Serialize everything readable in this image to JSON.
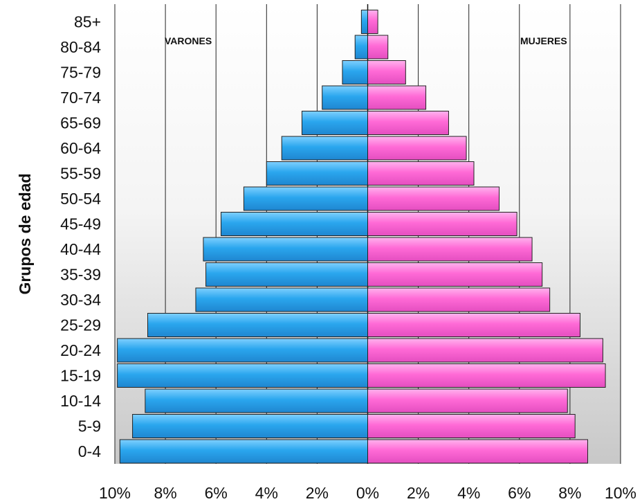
{
  "chart_data": {
    "type": "bar",
    "orientation": "horizontal-pyramid",
    "ylabel": "Grupos de edad",
    "categories": [
      "0-4",
      "5-9",
      "10-14",
      "15-19",
      "20-24",
      "25-29",
      "30-34",
      "35-39",
      "40-44",
      "45-49",
      "50-54",
      "55-59",
      "60-64",
      "65-69",
      "70-74",
      "75-79",
      "80-84",
      "85+"
    ],
    "series": [
      {
        "name": "VARONES",
        "color": "#2aa6ee",
        "values": [
          9.8,
          9.3,
          8.8,
          9.9,
          9.9,
          8.7,
          6.8,
          6.4,
          6.5,
          5.8,
          4.9,
          4.0,
          3.4,
          2.6,
          1.8,
          1.0,
          0.5,
          0.25
        ]
      },
      {
        "name": "MUJERES",
        "color": "#ff6ad6",
        "values": [
          8.7,
          8.2,
          7.9,
          9.4,
          9.3,
          8.4,
          7.2,
          6.9,
          6.5,
          5.9,
          5.2,
          4.2,
          3.9,
          3.2,
          2.3,
          1.5,
          0.8,
          0.4
        ]
      }
    ],
    "x_ticks": [
      "10%",
      "8%",
      "6%",
      "4%",
      "2%",
      "0%",
      "2%",
      "4%",
      "6%",
      "8%",
      "10%"
    ],
    "xlim": [
      -10,
      10
    ],
    "grid": true
  }
}
